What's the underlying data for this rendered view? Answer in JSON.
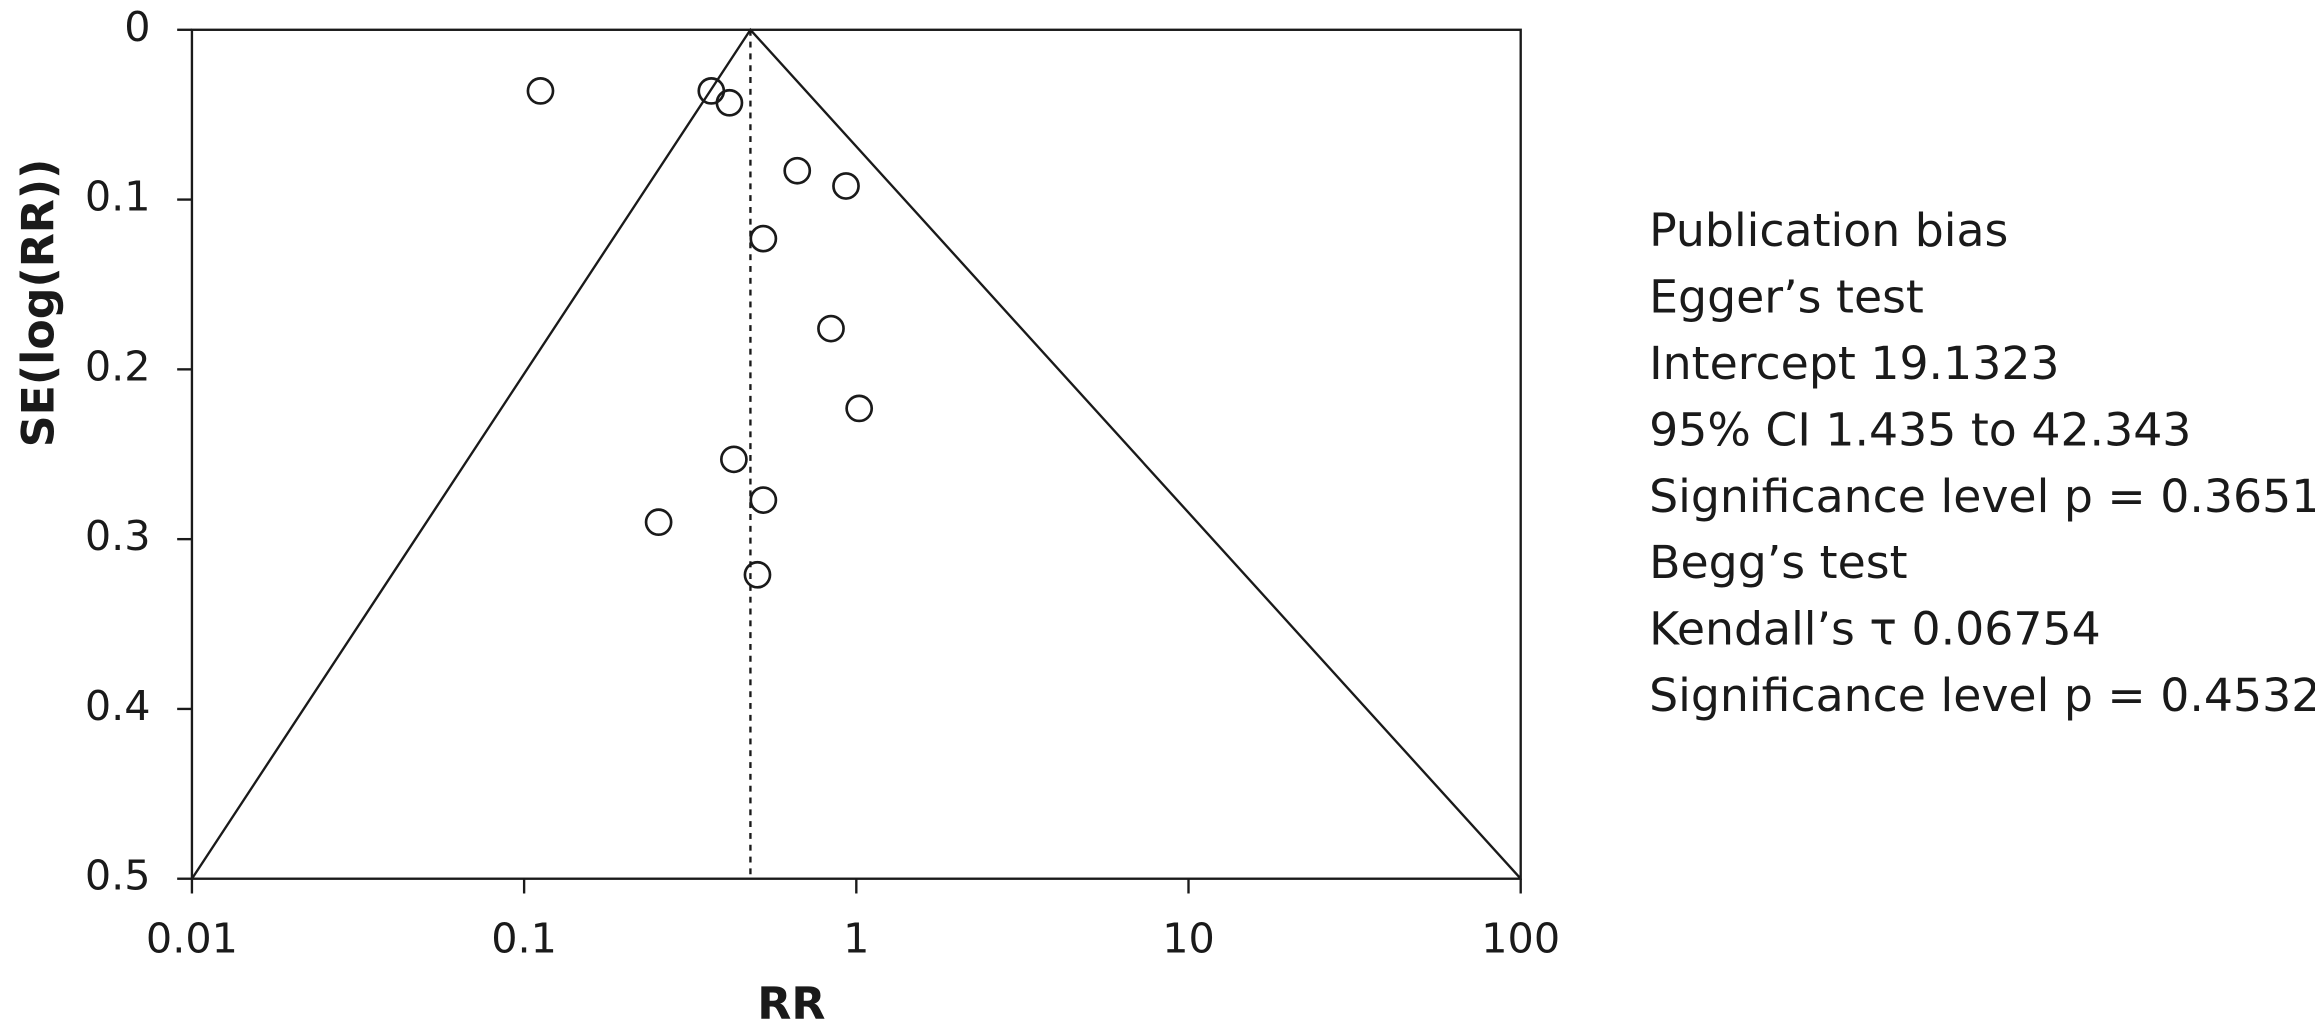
{
  "chart_data": {
    "type": "scatter",
    "x_label": "RR",
    "y_label": "SE(log(RR))",
    "x_scale": "log",
    "y_inverted": true,
    "xlim": [
      0.01,
      100
    ],
    "ylim": [
      0,
      0.5
    ],
    "xticks": [
      0.01,
      0.1,
      1,
      10,
      100
    ],
    "yticks": [
      0,
      0.1,
      0.2,
      0.3,
      0.4,
      0.5
    ],
    "reference_rr": 0.48,
    "marker_color": "#1a1a1a",
    "x": [
      0.112,
      0.366,
      0.415,
      0.664,
      0.931,
      0.525,
      0.839,
      1.02,
      0.428,
      0.525,
      0.254,
      0.504
    ],
    "values": [
      0.036,
      0.036,
      0.043,
      0.083,
      0.092,
      0.123,
      0.176,
      0.223,
      0.253,
      0.277,
      0.29,
      0.321
    ],
    "annotation": [
      "Publication bias",
      "Egger’s test",
      "Intercept 19.1323",
      "95% CI 1.435 to 42.343",
      "Significance level p = 0.3651",
      "Begg’s test",
      "Kendall’s τ 0.06754",
      "Significance level p = 0.4532"
    ]
  }
}
